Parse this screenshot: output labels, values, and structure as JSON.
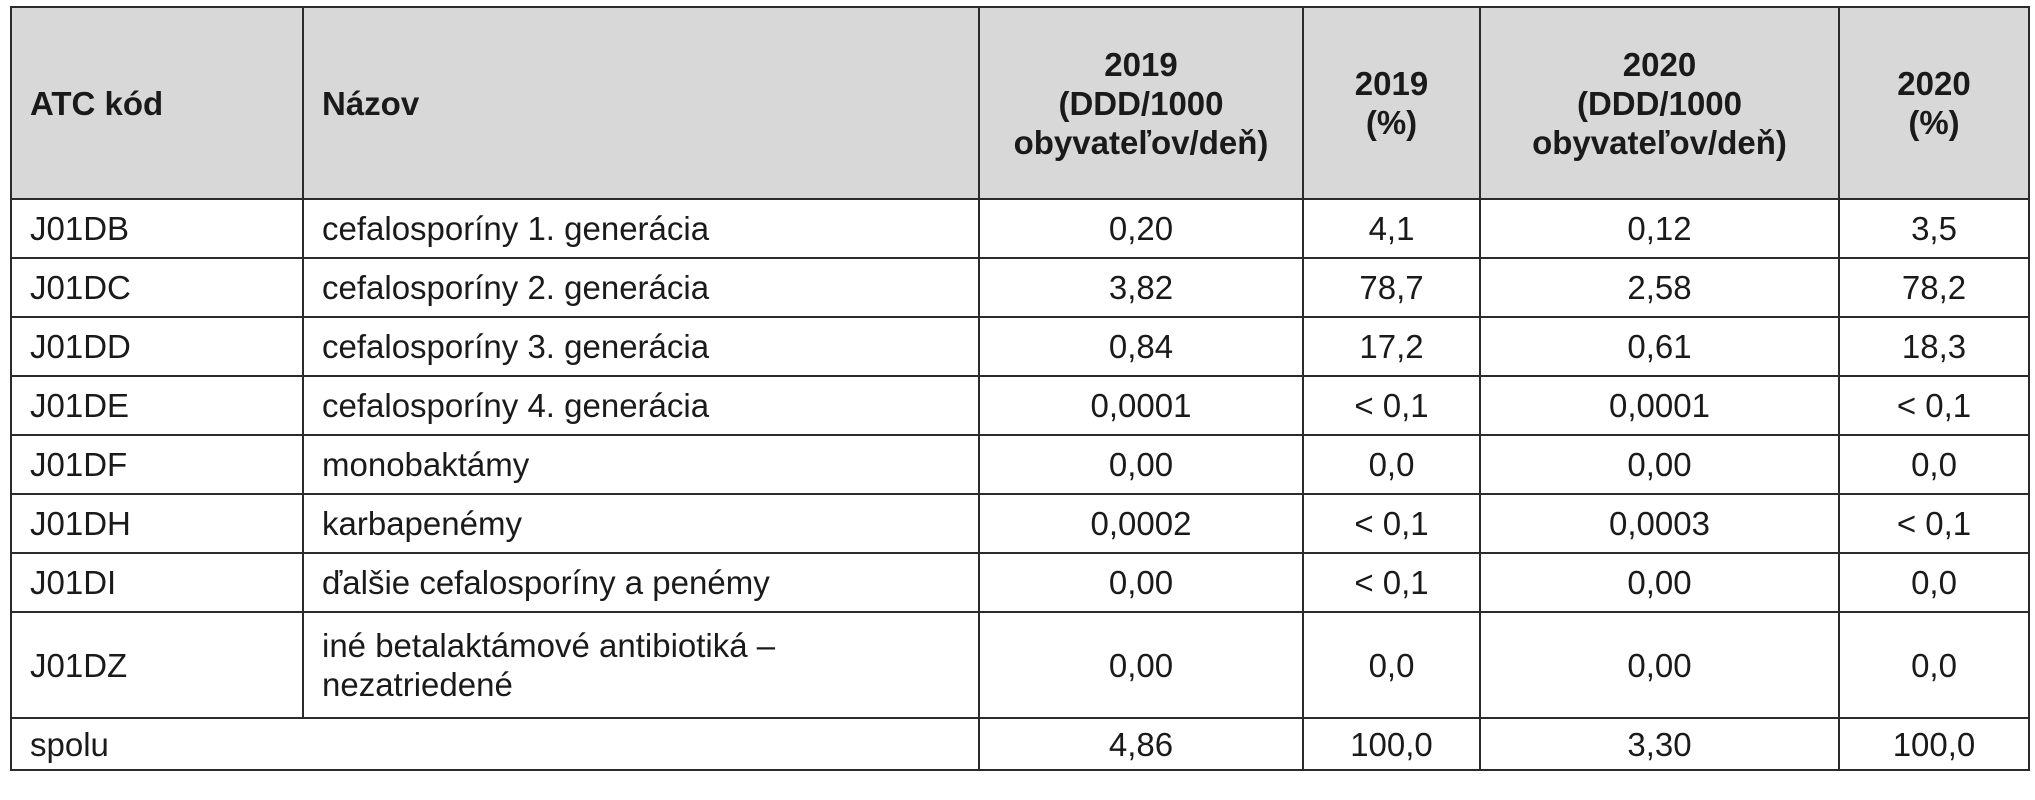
{
  "table": {
    "headers": {
      "atc": "ATC kód",
      "name": "Názov",
      "ddd2019": [
        "2019",
        "(DDD/1000",
        "obyvateľov/deň)"
      ],
      "pct2019": [
        "2019",
        "(%)"
      ],
      "ddd2020": [
        "2020",
        "(DDD/1000",
        "obyvateľov/deň)"
      ],
      "pct2020": [
        "2020",
        "(%)"
      ]
    },
    "rows": [
      {
        "code": "J01DB",
        "name": "cefalosporíny 1. generácia",
        "ddd2019": "0,20",
        "pct2019": "4,1",
        "ddd2020": "0,12",
        "pct2020": "3,5"
      },
      {
        "code": "J01DC",
        "name": "cefalosporíny 2. generácia",
        "ddd2019": "3,82",
        "pct2019": "78,7",
        "ddd2020": "2,58",
        "pct2020": "78,2"
      },
      {
        "code": "J01DD",
        "name": "cefalosporíny 3. generácia",
        "ddd2019": "0,84",
        "pct2019": "17,2",
        "ddd2020": "0,61",
        "pct2020": "18,3"
      },
      {
        "code": "J01DE",
        "name": "cefalosporíny 4. generácia",
        "ddd2019": "0,0001",
        "pct2019": "< 0,1",
        "ddd2020": "0,0001",
        "pct2020": "< 0,1"
      },
      {
        "code": "J01DF",
        "name": "monobaktámy",
        "ddd2019": "0,00",
        "pct2019": "0,0",
        "ddd2020": "0,00",
        "pct2020": "0,0"
      },
      {
        "code": "J01DH",
        "name": "karbapenémy",
        "ddd2019": "0,0002",
        "pct2019": "< 0,1",
        "ddd2020": "0,0003",
        "pct2020": "< 0,1"
      },
      {
        "code": "J01DI",
        "name": "ďalšie cefalosporíny a penémy",
        "ddd2019": "0,00",
        "pct2019": "< 0,1",
        "ddd2020": "0,00",
        "pct2020": "0,0"
      },
      {
        "code": "J01DZ",
        "name": [
          "iné betalaktámové antibiotiká –",
          "nezatriedené"
        ],
        "ddd2019": "0,00",
        "pct2019": "0,0",
        "ddd2020": "0,00",
        "pct2020": "0,0"
      }
    ],
    "total": {
      "label": "spolu",
      "ddd2019": "4,86",
      "pct2019": "100,0",
      "ddd2020": "3,30",
      "pct2020": "100,0"
    }
  }
}
